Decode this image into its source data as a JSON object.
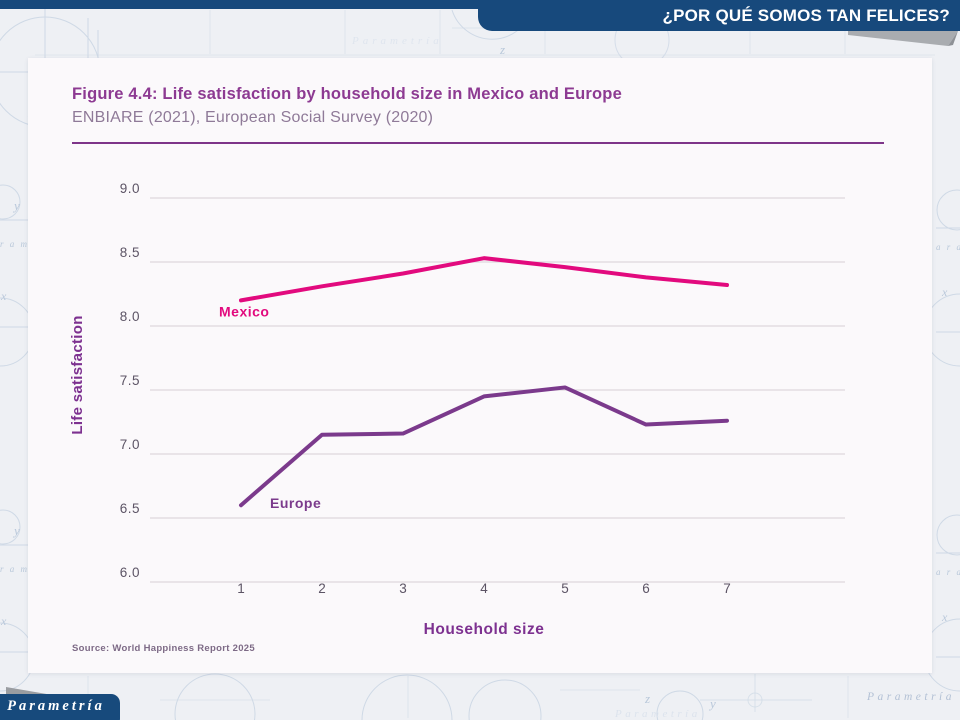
{
  "header": {
    "title": "¿POR QUÉ SOMOS TAN FELICES?"
  },
  "card": {
    "title": "Figure 4.4: Life satisfaction by household size in Mexico and Europe",
    "subtitle": "ENBIARE (2021), European Social Survey (2020)",
    "source": "Source: World Happiness Report 2025"
  },
  "footer": {
    "logo_text": "Parametría",
    "watermark": "Parametría"
  },
  "colors": {
    "header_blue": "#17497c",
    "mexico_pink": "#e20a7e",
    "europe_purple": "#7b3a8c",
    "title_purple": "#8d3a92",
    "axis_title": "#7d3190",
    "axis_text": "#5c5465",
    "grid": "#ded7dd"
  },
  "chart_data": {
    "type": "line",
    "x": [
      "1",
      "2",
      "3",
      "4",
      "5",
      "6",
      "7"
    ],
    "xlabel": "Household size",
    "ylabel": "Life satisfaction",
    "ylim": [
      6.0,
      9.0
    ],
    "yticks": [
      9.0,
      8.5,
      8.0,
      7.5,
      7.0,
      6.5,
      6.0
    ],
    "grid": true,
    "legend_position": "inline-labels",
    "series": [
      {
        "name": "Mexico",
        "color": "#e20a7e",
        "values": [
          8.2,
          8.31,
          8.41,
          8.53,
          8.46,
          8.38,
          8.32
        ]
      },
      {
        "name": "Europe",
        "color": "#7b3a8c",
        "values": [
          6.6,
          7.15,
          7.16,
          7.45,
          7.52,
          7.23,
          7.26
        ]
      }
    ],
    "source_note": "Source: World Happiness Report 2025"
  }
}
